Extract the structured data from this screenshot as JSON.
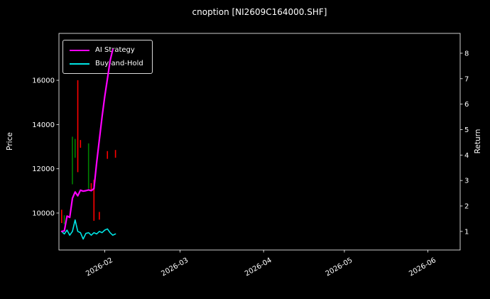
{
  "chart_data": {
    "type": "line",
    "title": "cnoption [NI2609C164000.SHF]",
    "background": "#000000",
    "text_color": "#ffffff",
    "left_axis": {
      "label": "Price",
      "ticks": [
        10000,
        12000,
        14000,
        16000
      ],
      "range": [
        8330,
        18120
      ]
    },
    "right_axis": {
      "label": "Return",
      "ticks": [
        1,
        2,
        3,
        4,
        5,
        6,
        7,
        8
      ],
      "range": [
        0.27,
        8.78
      ]
    },
    "x_axis": {
      "range": [
        "2026-01-15",
        "2026-06-13"
      ],
      "ticks": [
        {
          "label": "2026-02",
          "date": "2026-02-01"
        },
        {
          "label": "2026-03",
          "date": "2026-03-01"
        },
        {
          "label": "2026-04",
          "date": "2026-04-01"
        },
        {
          "label": "2026-05",
          "date": "2026-05-01"
        },
        {
          "label": "2026-06",
          "date": "2026-06-01"
        }
      ]
    },
    "legend": {
      "position": "upper-left",
      "items": [
        {
          "label": "AI Strategy",
          "color": "#ff00ff"
        },
        {
          "label": "Buy-and-Hold",
          "color": "#00e5e5"
        }
      ]
    },
    "series": [
      {
        "name": "AI Strategy",
        "axis": "right",
        "color": "#ff00ff",
        "width": 2.2,
        "points": [
          [
            "2026-01-16",
            1.0
          ],
          [
            "2026-01-17",
            1.02
          ],
          [
            "2026-01-18",
            1.6
          ],
          [
            "2026-01-19",
            1.55
          ],
          [
            "2026-01-20",
            2.3
          ],
          [
            "2026-01-21",
            2.55
          ],
          [
            "2026-01-22",
            2.4
          ],
          [
            "2026-01-23",
            2.62
          ],
          [
            "2026-01-24",
            2.58
          ],
          [
            "2026-01-25",
            2.6
          ],
          [
            "2026-01-26",
            2.63
          ],
          [
            "2026-01-27",
            2.6
          ],
          [
            "2026-01-28",
            2.68
          ],
          [
            "2026-01-29",
            3.7
          ],
          [
            "2026-01-30",
            4.6
          ],
          [
            "2026-01-31",
            5.5
          ],
          [
            "2026-02-01",
            6.3
          ],
          [
            "2026-02-02",
            7.0
          ],
          [
            "2026-02-03",
            7.7
          ],
          [
            "2026-02-04",
            8.15
          ]
        ]
      },
      {
        "name": "Buy-and-Hold",
        "axis": "right",
        "color": "#00e5e5",
        "width": 1.6,
        "points": [
          [
            "2026-01-16",
            1.0
          ],
          [
            "2026-01-17",
            0.9
          ],
          [
            "2026-01-18",
            1.05
          ],
          [
            "2026-01-19",
            0.85
          ],
          [
            "2026-01-20",
            1.0
          ],
          [
            "2026-01-21",
            1.45
          ],
          [
            "2026-01-22",
            1.0
          ],
          [
            "2026-01-23",
            0.95
          ],
          [
            "2026-01-24",
            0.7
          ],
          [
            "2026-01-25",
            0.92
          ],
          [
            "2026-01-26",
            0.95
          ],
          [
            "2026-01-27",
            0.85
          ],
          [
            "2026-01-28",
            0.95
          ],
          [
            "2026-01-29",
            0.9
          ],
          [
            "2026-01-30",
            1.0
          ],
          [
            "2026-01-31",
            0.95
          ],
          [
            "2026-02-01",
            1.05
          ],
          [
            "2026-02-02",
            1.1
          ],
          [
            "2026-02-03",
            0.95
          ],
          [
            "2026-02-04",
            0.85
          ],
          [
            "2026-02-05",
            0.9
          ]
        ]
      }
    ],
    "candles": [
      {
        "date": "2026-01-16",
        "high": 10150,
        "low": 9550,
        "color": "#ff0000"
      },
      {
        "date": "2026-01-17",
        "high": 9900,
        "low": 9500,
        "color": "#008000"
      },
      {
        "date": "2026-01-20",
        "high": 13450,
        "low": 11300,
        "color": "#008000"
      },
      {
        "date": "2026-01-21",
        "high": 13350,
        "low": 12500,
        "color": "#008000"
      },
      {
        "date": "2026-01-22",
        "high": 16000,
        "low": 11850,
        "color": "#ff0000"
      },
      {
        "date": "2026-01-23",
        "high": 13300,
        "low": 12950,
        "color": "#ff0000"
      },
      {
        "date": "2026-01-26",
        "high": 13150,
        "low": 11100,
        "color": "#008000"
      },
      {
        "date": "2026-01-27",
        "high": 11350,
        "low": 11050,
        "color": "#ff0000"
      },
      {
        "date": "2026-01-28",
        "high": 11500,
        "low": 9650,
        "color": "#ff0000"
      },
      {
        "date": "2026-01-30",
        "high": 10050,
        "low": 9700,
        "color": "#ff0000"
      },
      {
        "date": "2026-02-02",
        "high": 12800,
        "low": 12450,
        "color": "#ff0000"
      },
      {
        "date": "2026-02-05",
        "high": 12850,
        "low": 12500,
        "color": "#ff0000"
      }
    ]
  }
}
